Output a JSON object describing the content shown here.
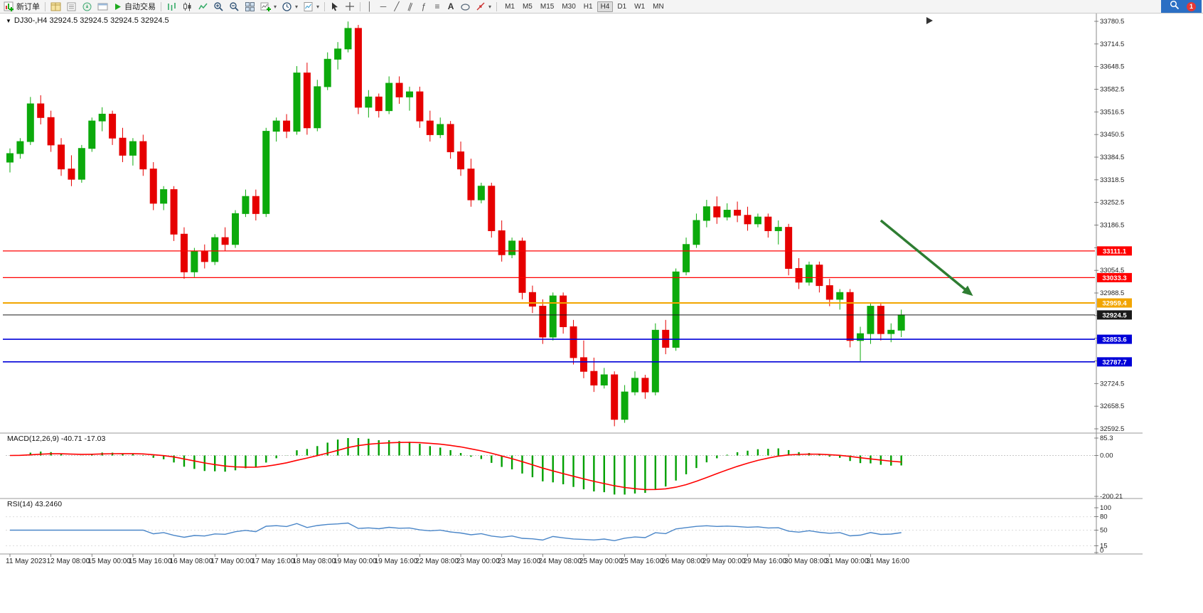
{
  "toolbar": {
    "new_order_label": "新订单",
    "autotrade_label": "自动交易",
    "timeframes": [
      "M1",
      "M5",
      "M15",
      "M30",
      "H1",
      "H4",
      "D1",
      "W1",
      "MN"
    ],
    "active_timeframe": "H4",
    "notification_count": "1"
  },
  "chart": {
    "header": "DJ30-,H4 32924.5 32924.5 32924.5 32924.5",
    "symbol": "DJ30-",
    "period": "H4"
  },
  "chart_data": {
    "type": "candlestick",
    "title": "DJ30-,H4",
    "colors": {
      "up": "#0caa0c",
      "down": "#e60000",
      "axis_text": "#222222"
    },
    "price_axis": {
      "max": 33780.5,
      "min": 32592.5,
      "tick_step": 66,
      "ticks": [
        33780.5,
        33714.5,
        33648.5,
        33582.5,
        33516.5,
        33450.5,
        33384.5,
        33318.5,
        33252.5,
        33186.5,
        33120.5,
        33054.5,
        32988.5,
        32922.5,
        32856.5,
        32790.5,
        32724.5,
        32658.5,
        32592.5
      ]
    },
    "time_labels": [
      "11 May 2023",
      "12 May 08:00",
      "15 May 00:00",
      "15 May 16:00",
      "16 May 08:00",
      "17 May 00:00",
      "17 May 16:00",
      "18 May 08:00",
      "19 May 00:00",
      "19 May 16:00",
      "22 May 08:00",
      "23 May 00:00",
      "23 May 16:00",
      "24 May 08:00",
      "25 May 00:00",
      "25 May 16:00",
      "26 May 08:00",
      "29 May 00:00",
      "29 May 16:00",
      "30 May 08:00",
      "31 May 00:00",
      "31 May 16:00"
    ],
    "candles": [
      [
        33370,
        33410,
        33340,
        33395
      ],
      [
        33395,
        33440,
        33380,
        33430
      ],
      [
        33430,
        33560,
        33420,
        33540
      ],
      [
        33540,
        33565,
        33480,
        33500
      ],
      [
        33500,
        33520,
        33400,
        33420
      ],
      [
        33420,
        33440,
        33330,
        33350
      ],
      [
        33350,
        33390,
        33300,
        33320
      ],
      [
        33320,
        33420,
        33310,
        33410
      ],
      [
        33410,
        33500,
        33400,
        33490
      ],
      [
        33490,
        33530,
        33460,
        33510
      ],
      [
        33510,
        33520,
        33420,
        33440
      ],
      [
        33440,
        33470,
        33370,
        33390
      ],
      [
        33390,
        33440,
        33360,
        33430
      ],
      [
        33430,
        33450,
        33330,
        33350
      ],
      [
        33350,
        33370,
        33230,
        33250
      ],
      [
        33250,
        33300,
        33230,
        33290
      ],
      [
        33290,
        33300,
        33140,
        33160
      ],
      [
        33160,
        33180,
        33030,
        33050
      ],
      [
        33050,
        33120,
        33035,
        33110
      ],
      [
        33110,
        33130,
        33060,
        33080
      ],
      [
        33080,
        33160,
        33070,
        33150
      ],
      [
        33150,
        33180,
        33110,
        33130
      ],
      [
        33130,
        33230,
        33120,
        33220
      ],
      [
        33220,
        33290,
        33210,
        33270
      ],
      [
        33270,
        33290,
        33200,
        33220
      ],
      [
        33220,
        33470,
        33210,
        33460
      ],
      [
        33460,
        33500,
        33430,
        33490
      ],
      [
        33490,
        33510,
        33440,
        33460
      ],
      [
        33460,
        33650,
        33450,
        33630
      ],
      [
        33630,
        33660,
        33450,
        33470
      ],
      [
        33470,
        33610,
        33460,
        33590
      ],
      [
        33590,
        33690,
        33580,
        33670
      ],
      [
        33670,
        33720,
        33640,
        33700
      ],
      [
        33700,
        33780,
        33690,
        33760
      ],
      [
        33760,
        33770,
        33510,
        33530
      ],
      [
        33530,
        33580,
        33500,
        33560
      ],
      [
        33560,
        33570,
        33500,
        33520
      ],
      [
        33520,
        33620,
        33510,
        33600
      ],
      [
        33600,
        33620,
        33540,
        33560
      ],
      [
        33560,
        33590,
        33520,
        33575
      ],
      [
        33575,
        33590,
        33470,
        33490
      ],
      [
        33490,
        33520,
        33430,
        33450
      ],
      [
        33450,
        33500,
        33440,
        33480
      ],
      [
        33480,
        33490,
        33380,
        33400
      ],
      [
        33400,
        33430,
        33330,
        33350
      ],
      [
        33350,
        33380,
        33240,
        33260
      ],
      [
        33260,
        33310,
        33250,
        33300
      ],
      [
        33300,
        33310,
        33150,
        33170
      ],
      [
        33170,
        33200,
        33080,
        33100
      ],
      [
        33100,
        33150,
        33090,
        33140
      ],
      [
        33140,
        33150,
        32970,
        32990
      ],
      [
        32990,
        33010,
        32930,
        32950
      ],
      [
        32950,
        32970,
        32840,
        32860
      ],
      [
        32860,
        32990,
        32850,
        32980
      ],
      [
        32980,
        32990,
        32870,
        32890
      ],
      [
        32890,
        32910,
        32780,
        32800
      ],
      [
        32800,
        32850,
        32740,
        32760
      ],
      [
        32760,
        32800,
        32700,
        32720
      ],
      [
        32720,
        32770,
        32710,
        32750
      ],
      [
        32750,
        32760,
        32600,
        32620
      ],
      [
        32620,
        32720,
        32610,
        32700
      ],
      [
        32700,
        32760,
        32690,
        32740
      ],
      [
        32740,
        32750,
        32680,
        32700
      ],
      [
        32700,
        32900,
        32690,
        32880
      ],
      [
        32880,
        32910,
        32810,
        32830
      ],
      [
        32830,
        33060,
        32820,
        33050
      ],
      [
        33050,
        33150,
        33040,
        33130
      ],
      [
        33130,
        33220,
        33120,
        33200
      ],
      [
        33200,
        33260,
        33180,
        33240
      ],
      [
        33240,
        33270,
        33190,
        33210
      ],
      [
        33210,
        33250,
        33200,
        33230
      ],
      [
        33230,
        33255,
        33195,
        33215
      ],
      [
        33215,
        33240,
        33170,
        33190
      ],
      [
        33190,
        33220,
        33180,
        33210
      ],
      [
        33210,
        33220,
        33150,
        33170
      ],
      [
        33170,
        33200,
        33130,
        33180
      ],
      [
        33180,
        33190,
        33040,
        33060
      ],
      [
        33060,
        33090,
        33000,
        33020
      ],
      [
        33020,
        33080,
        33010,
        33070
      ],
      [
        33070,
        33080,
        32990,
        33010
      ],
      [
        33010,
        33030,
        32950,
        32970
      ],
      [
        32970,
        33000,
        32940,
        32990
      ],
      [
        32990,
        33000,
        32830,
        32850
      ],
      [
        32850,
        32890,
        32790,
        32870
      ],
      [
        32870,
        32960,
        32840,
        32950
      ],
      [
        32950,
        32960,
        32850,
        32870
      ],
      [
        32870,
        32900,
        32845,
        32880
      ],
      [
        32880,
        32940,
        32860,
        32924.5
      ]
    ],
    "levels": [
      {
        "price": 33111.1,
        "label": "33111.1",
        "color": "#ff0000",
        "width": 1.2,
        "type": "resistance"
      },
      {
        "price": 33033.3,
        "label": "33033.3",
        "color": "#ff0000",
        "width": 1.2,
        "type": "resistance"
      },
      {
        "price": 32959.4,
        "label": "32959.4",
        "color": "#f2a500",
        "width": 2.0,
        "type": "pivot"
      },
      {
        "price": 32924.5,
        "label": "32924.5",
        "color": "#1a1a1a",
        "width": 1.0,
        "type": "current-bid"
      },
      {
        "price": 32853.6,
        "label": "32853.6",
        "color": "#0000d8",
        "width": 1.6,
        "type": "support"
      },
      {
        "price": 32787.7,
        "label": "32787.7",
        "color": "#0000d8",
        "width": 1.6,
        "type": "support"
      }
    ],
    "arrow": {
      "from_index": 85,
      "from_price": 33200,
      "to_index": 94,
      "to_price": 32980,
      "color": "#2e7d32",
      "width": 3.5
    },
    "indicators": [
      {
        "name": "MACD",
        "label": "MACD(12,26,9) -40.71 -17.03",
        "params": [
          12,
          26,
          9
        ],
        "main_value": -40.71,
        "signal_value": -17.03,
        "axis_max": 85.3,
        "axis_zero": "0.00",
        "axis_min": -200.21,
        "axis_labels": [
          "85.3",
          "0.00",
          "-200.21"
        ],
        "histogram_color": "#00a000",
        "signal_color": "#ff0000"
      },
      {
        "name": "RSI",
        "label": "RSI(14) 43.2460",
        "period": 14,
        "value": 43.246,
        "axis_labels": [
          "100",
          "80",
          "50",
          "15",
          "0"
        ],
        "axis_values": [
          100,
          80,
          50,
          15,
          0
        ],
        "line_color": "#4a86c8"
      }
    ]
  }
}
